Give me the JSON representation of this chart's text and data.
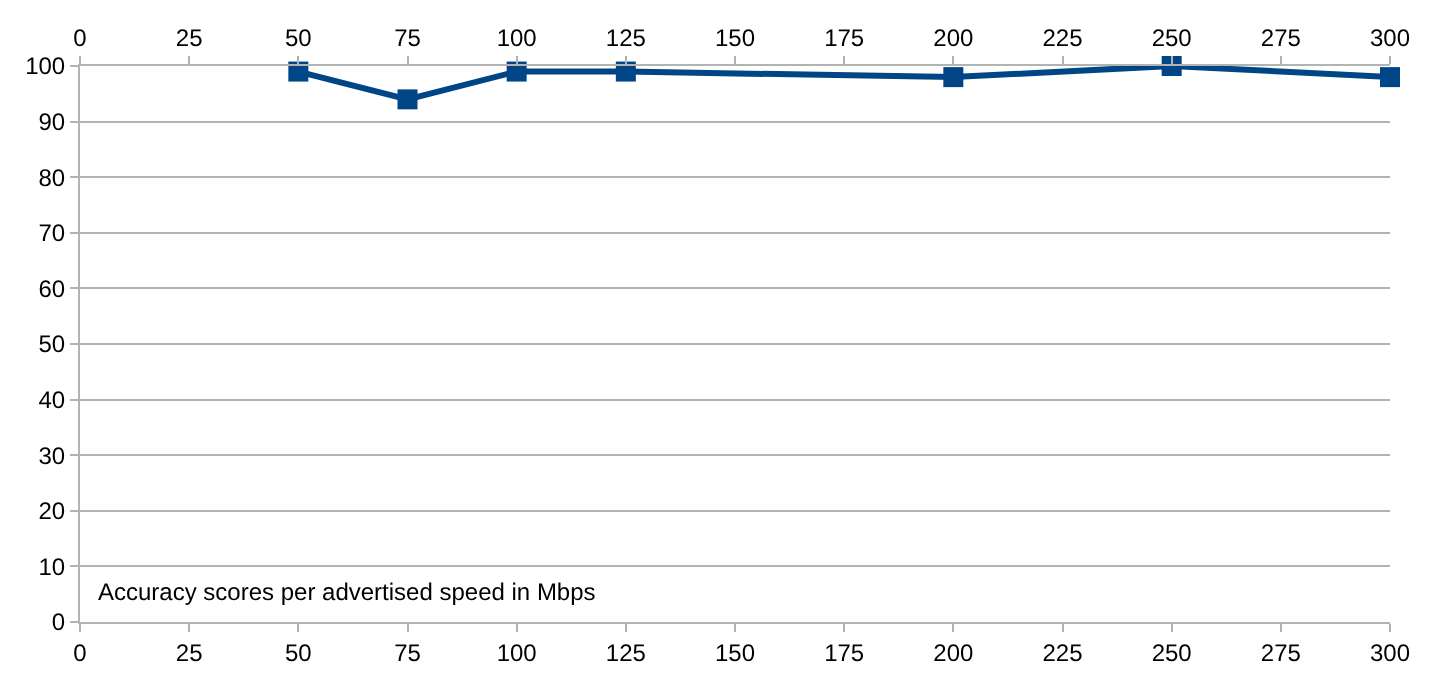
{
  "chart_data": {
    "type": "line",
    "x": [
      50,
      75,
      100,
      125,
      200,
      250,
      300
    ],
    "series": [
      {
        "color": "#004586",
        "values": [
          99,
          94,
          99,
          99,
          98,
          100,
          98
        ]
      }
    ],
    "xlim": [
      0,
      300
    ],
    "xticks": [
      0,
      25,
      50,
      75,
      100,
      125,
      150,
      175,
      200,
      225,
      250,
      275,
      300
    ],
    "x2lim": [
      0,
      300
    ],
    "x2ticks": [
      0,
      25,
      50,
      75,
      100,
      125,
      150,
      175,
      200,
      225,
      250,
      275,
      300
    ],
    "ylim": [
      0,
      100
    ],
    "yticks": [
      0,
      10,
      20,
      30,
      40,
      50,
      60,
      70,
      80,
      90,
      100
    ],
    "grid": "y",
    "marker": "square",
    "line_style": "solid",
    "annotations": [
      "Accuracy scores per advertised speed in Mbps"
    ]
  }
}
